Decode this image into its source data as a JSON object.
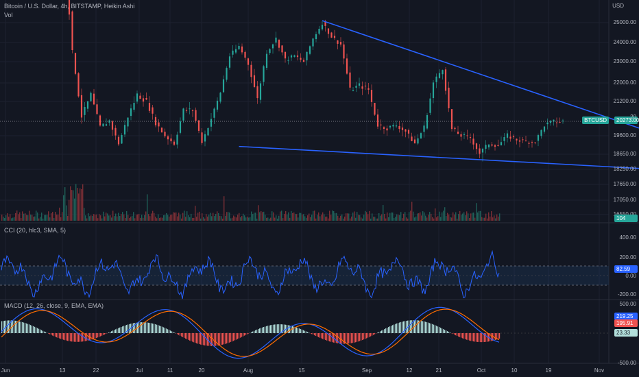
{
  "header": {
    "title": "Bitcoin / U.S. Dollar, 4h, BITSTAMP, Heikin Ashi",
    "vol_label": "Vol",
    "currency": "USD"
  },
  "colors": {
    "background": "#131722",
    "up": "#26a69a",
    "down": "#ef5350",
    "trendline": "#2962ff",
    "cci_line": "#2962ff",
    "cci_band": "#1e3a5f",
    "macd_line": "#2962ff",
    "signal_line": "#ff6d00",
    "price_tag": "#26a69a"
  },
  "price_axis": {
    "ticks": [
      "25000.00",
      "24000.00",
      "23000.00",
      "22000.00",
      "21200.00",
      "19600.00",
      "18650.00",
      "18250.00",
      "17650.00",
      "17050.00",
      "16550.00"
    ],
    "symbol_tag": "BTCUSD",
    "last_price": "20273.00",
    "volume_tag": "104",
    "partial_tick": "20"
  },
  "cci": {
    "title": "CCI (20, hlc3, SMA, 5)",
    "ticks": [
      "400.00",
      "200.00",
      "0.00",
      "-200.00"
    ],
    "value_tag": "82.59"
  },
  "macd": {
    "title": "MACD (12, 26, close, 9, EMA, EMA)",
    "ticks": [
      "500.00",
      "-500.00"
    ],
    "macd_tag": "219.25",
    "signal_tag": "195.91",
    "hist_tag": "23.33"
  },
  "time_axis": {
    "labels": [
      "Jun",
      "13",
      "22",
      "Jul",
      "11",
      "20",
      "Aug",
      "15",
      "Sep",
      "12",
      "21",
      "Oct",
      "10",
      "19",
      "Nov"
    ]
  },
  "chart_data": {
    "type": "candlestick",
    "title": "Bitcoin / U.S. Dollar, 4h, BITSTAMP, Heikin Ashi",
    "ylabel": "USD",
    "ylim": [
      16550,
      25500
    ],
    "x_labels": [
      "Jun",
      "13",
      "22",
      "Jul",
      "11",
      "20",
      "Aug",
      "15",
      "Sep",
      "12",
      "21",
      "Oct",
      "10",
      "19",
      "Nov"
    ],
    "price_path": [
      [
        0,
        29500
      ],
      [
        3,
        23500
      ],
      [
        6,
        20500
      ],
      [
        9,
        21500
      ],
      [
        12,
        20000
      ],
      [
        15,
        20300
      ],
      [
        18,
        19200
      ],
      [
        21,
        20500
      ],
      [
        24,
        21500
      ],
      [
        27,
        21200
      ],
      [
        30,
        20200
      ],
      [
        33,
        19600
      ],
      [
        36,
        19200
      ],
      [
        39,
        20800
      ],
      [
        42,
        20800
      ],
      [
        45,
        19300
      ],
      [
        48,
        20400
      ],
      [
        51,
        21600
      ],
      [
        54,
        23300
      ],
      [
        57,
        23800
      ],
      [
        60,
        22900
      ],
      [
        63,
        21300
      ],
      [
        66,
        23500
      ],
      [
        69,
        24200
      ],
      [
        72,
        23100
      ],
      [
        75,
        23300
      ],
      [
        78,
        23000
      ],
      [
        81,
        24200
      ],
      [
        84,
        25000
      ],
      [
        87,
        24300
      ],
      [
        90,
        23900
      ],
      [
        93,
        21700
      ],
      [
        96,
        21900
      ],
      [
        99,
        21700
      ],
      [
        102,
        20100
      ],
      [
        105,
        19950
      ],
      [
        108,
        20100
      ],
      [
        111,
        19800
      ],
      [
        114,
        19200
      ],
      [
        117,
        20000
      ],
      [
        120,
        22000
      ],
      [
        123,
        22700
      ],
      [
        126,
        19900
      ],
      [
        129,
        19600
      ],
      [
        132,
        19500
      ],
      [
        135,
        18700
      ],
      [
        138,
        19200
      ],
      [
        141,
        19100
      ],
      [
        144,
        19600
      ],
      [
        147,
        19400
      ],
      [
        150,
        19300
      ],
      [
        153,
        19300
      ],
      [
        156,
        20100
      ],
      [
        159,
        20250
      ],
      [
        162,
        20273
      ]
    ],
    "trendlines": [
      {
        "name": "upper",
        "from": [
          84,
          25100
        ],
        "to": [
          194,
          19600
        ]
      },
      {
        "name": "lower",
        "from": [
          57,
          19050
        ],
        "to": [
          192,
          18250
        ]
      }
    ],
    "last_price": 20273.0,
    "cci": {
      "current": 82.59,
      "upper_band": 100,
      "lower_band": -100
    },
    "macd": {
      "macd": 219.25,
      "signal": 195.91,
      "histogram": 23.33
    }
  }
}
